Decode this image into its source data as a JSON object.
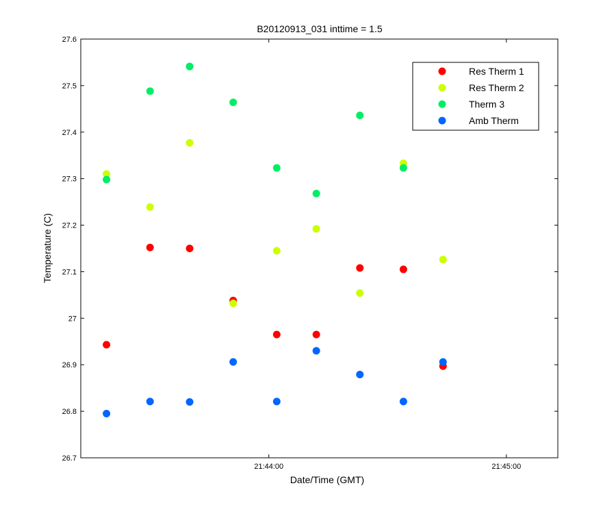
{
  "chart_data": {
    "type": "scatter",
    "title": "B20120913_031 inttime = 1.5",
    "xlabel": "Date/Time (GMT)",
    "ylabel": "Temperature (C)",
    "x_axis": "time",
    "xlim": [
      "21:43:12.5",
      "21:45:13"
    ],
    "ylim": [
      26.7,
      27.6
    ],
    "yticks": [
      26.7,
      26.8,
      26.9,
      27,
      27.1,
      27.2,
      27.3,
      27.4,
      27.5,
      27.6
    ],
    "ytick_labels": [
      "26.7",
      "26.8",
      "26.9",
      "27",
      "27.1",
      "27.2",
      "27.3",
      "27.4",
      "27.5",
      "27.6"
    ],
    "xticks": [
      "21:44:00",
      "21:45:00"
    ],
    "grid": false,
    "legend_position": "top-right",
    "x": [
      "21:43:19",
      "21:43:30",
      "21:43:40",
      "21:43:51",
      "21:44:02",
      "21:44:12",
      "21:44:23",
      "21:44:34",
      "21:44:44"
    ],
    "series": [
      {
        "name": "Res Therm 1",
        "color": "#ff0000",
        "values": [
          26.943,
          27.152,
          27.15,
          27.038,
          26.965,
          26.965,
          27.108,
          27.105,
          26.897
        ]
      },
      {
        "name": "Res Therm 2",
        "color": "#ccff00",
        "values": [
          27.31,
          27.239,
          27.377,
          27.032,
          27.145,
          27.192,
          27.054,
          27.333,
          27.126
        ]
      },
      {
        "name": "Therm 3",
        "color": "#00ee66",
        "values": [
          27.298,
          27.488,
          27.541,
          27.464,
          27.323,
          27.268,
          27.436,
          27.323,
          null
        ]
      },
      {
        "name": "Amb Therm",
        "color": "#0066ff",
        "values": [
          26.795,
          26.821,
          26.82,
          26.906,
          26.821,
          26.93,
          26.879,
          26.821,
          26.906
        ]
      }
    ]
  }
}
